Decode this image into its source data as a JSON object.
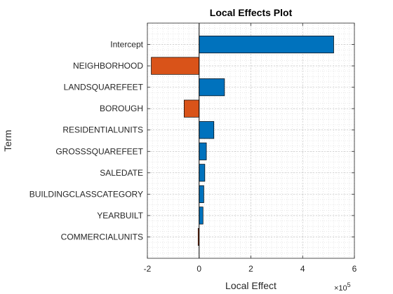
{
  "chart_data": {
    "type": "bar",
    "orientation": "horizontal",
    "title": "Local Effects Plot",
    "xlabel": "Local Effect",
    "ylabel": "Term",
    "x_exponent_label": "×10",
    "x_exponent_power": "5",
    "x_scale": 100000,
    "xlim": [
      -200000,
      600000
    ],
    "x_ticks": [
      -200000,
      0,
      200000,
      400000,
      600000
    ],
    "x_tick_labels": [
      "-2",
      "0",
      "2",
      "4",
      "6"
    ],
    "grid": true,
    "minor_grid": true,
    "positive_color": "#0072BD",
    "negative_color": "#D95319",
    "categories": [
      "Intercept",
      "NEIGHBORHOOD",
      "LANDSQUAREFEET",
      "BOROUGH",
      "RESIDENTIALUNITS",
      "GROSSSQUAREFEET",
      "SALEDATE",
      "BUILDINGCLASSCATEGORY",
      "YEARBUILT",
      "COMMERCIALUNITS"
    ],
    "values": [
      520000,
      -185000,
      98000,
      -58000,
      57000,
      28000,
      22000,
      18000,
      15000,
      -4000
    ]
  }
}
